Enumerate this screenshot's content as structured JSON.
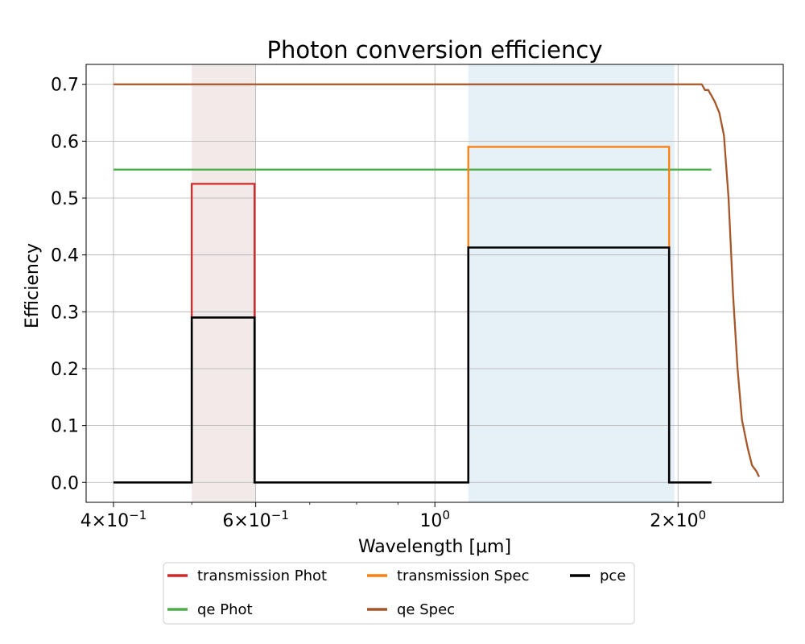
{
  "chart_data": {
    "type": "line",
    "title": "Photon conversion efficiency",
    "xlabel": "Wavelength [μm]",
    "ylabel": "Efficiency",
    "xscale": "log",
    "xlim": [
      0.37,
      2.7
    ],
    "ylim": [
      -0.035,
      0.735
    ],
    "grid": true,
    "legend_position": "bottom, below axes, 3 columns",
    "xticks": [
      {
        "value": 0.4,
        "mantissa": "4",
        "exp": "−1"
      },
      {
        "value": 0.6,
        "mantissa": "6",
        "exp": "−1"
      },
      {
        "value": 1.0,
        "mantissa": "",
        "exp": "0"
      },
      {
        "value": 2.0,
        "mantissa": "2",
        "exp": "0"
      }
    ],
    "yticks": [
      {
        "value": 0.0,
        "label": "0.0"
      },
      {
        "value": 0.1,
        "label": "0.1"
      },
      {
        "value": 0.2,
        "label": "0.2"
      },
      {
        "value": 0.3,
        "label": "0.3"
      },
      {
        "value": 0.4,
        "label": "0.4"
      },
      {
        "value": 0.5,
        "label": "0.5"
      },
      {
        "value": 0.6,
        "label": "0.6"
      },
      {
        "value": 0.7,
        "label": "0.7"
      }
    ],
    "bands": [
      {
        "x0": 0.5,
        "x1": 0.6,
        "color": "#8c564b",
        "opacity": 0.12
      },
      {
        "x0": 1.1,
        "x1": 1.98,
        "color": "#1f77b4",
        "opacity": 0.11
      }
    ],
    "series": [
      {
        "name": "transmission Phot",
        "color": "#d62728",
        "x": [
          0.5,
          0.5,
          0.598,
          0.598
        ],
        "y": [
          0.0,
          0.525,
          0.525,
          0.0
        ]
      },
      {
        "name": "transmission Spec",
        "color": "#ff7f0e",
        "x": [
          1.1,
          1.1,
          1.95,
          1.95
        ],
        "y": [
          0.0,
          0.59,
          0.59,
          0.0
        ]
      },
      {
        "name": "pce",
        "color": "#000000",
        "x": [
          0.4,
          0.5,
          0.5,
          0.598,
          0.598,
          1.1,
          1.1,
          1.95,
          1.95,
          2.2
        ],
        "y": [
          0.0,
          0.0,
          0.29,
          0.29,
          0.0,
          0.0,
          0.413,
          0.413,
          0.0,
          0.0
        ]
      },
      {
        "name": "qe Phot",
        "color": "#4daf4a",
        "x": [
          0.4,
          2.2
        ],
        "y": [
          0.55,
          0.55
        ]
      },
      {
        "name": "qe Spec",
        "color": "#a65628",
        "x": [
          0.4,
          2.14,
          2.16,
          2.18,
          2.2,
          2.22,
          2.25,
          2.28,
          2.31,
          2.34,
          2.37,
          2.4,
          2.44,
          2.47,
          2.5,
          2.52
        ],
        "y": [
          0.7,
          0.7,
          0.69,
          0.69,
          0.68,
          0.67,
          0.65,
          0.61,
          0.5,
          0.33,
          0.2,
          0.11,
          0.06,
          0.03,
          0.02,
          0.01
        ]
      }
    ],
    "legend": [
      {
        "label": "transmission Phot",
        "color": "#d62728"
      },
      {
        "label": "transmission Spec",
        "color": "#ff7f0e"
      },
      {
        "label": "pce",
        "color": "#000000"
      },
      {
        "label": "qe Phot",
        "color": "#4daf4a"
      },
      {
        "label": "qe Spec",
        "color": "#a65628"
      }
    ]
  }
}
